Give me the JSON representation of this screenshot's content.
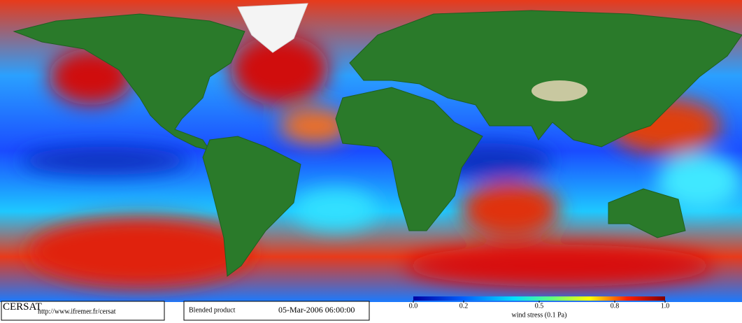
{
  "footer": {
    "logo": "CERSAT",
    "url": "http://www.ifremer.fr/cersat",
    "product": "Blended product",
    "date": "05-Mar-2006 06:00:00"
  },
  "colorbar": {
    "title": "wind stress (0.1 Pa)",
    "lim": [
      0,
      1
    ],
    "ticks": [
      {
        "value": 0,
        "label": "0.0"
      },
      {
        "value": 0.2,
        "label": "0.2"
      },
      {
        "value": 0.5,
        "label": "0.5"
      },
      {
        "value": 0.8,
        "label": "0.8"
      },
      {
        "value": 1,
        "label": "1.0"
      }
    ]
  }
}
